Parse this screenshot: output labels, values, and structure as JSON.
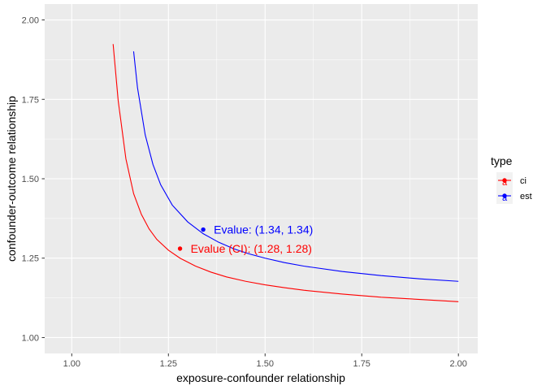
{
  "chart_data": {
    "type": "line",
    "xlabel": "exposure-confounder relationship",
    "ylabel": "confounder-outcome relationship",
    "xlim": [
      0.93,
      2.05
    ],
    "ylim": [
      0.95,
      2.05
    ],
    "x_ticks": [
      "1.00",
      "1.25",
      "1.50",
      "1.75",
      "2.00"
    ],
    "y_ticks": [
      "1.00",
      "1.25",
      "1.50",
      "1.75",
      "2.00"
    ],
    "grid": true,
    "legend": {
      "title": "type",
      "position": "right"
    },
    "series": [
      {
        "name": "ci",
        "color": "#ff0000",
        "x": [
          1.107,
          1.12,
          1.14,
          1.16,
          1.18,
          1.2,
          1.22,
          1.25,
          1.28,
          1.32,
          1.36,
          1.4,
          1.45,
          1.5,
          1.55,
          1.6,
          1.7,
          1.8,
          1.9,
          2.0
        ],
        "y": [
          1.924,
          1.747,
          1.563,
          1.453,
          1.388,
          1.342,
          1.309,
          1.275,
          1.25,
          1.225,
          1.206,
          1.191,
          1.177,
          1.166,
          1.157,
          1.149,
          1.137,
          1.127,
          1.12,
          1.113
        ],
        "point": {
          "x": 1.28,
          "y": 1.28
        },
        "annotation": "Evalue (CI): (1.28, 1.28)"
      },
      {
        "name": "est",
        "color": "#0000ff",
        "x": [
          1.16,
          1.17,
          1.19,
          1.21,
          1.23,
          1.26,
          1.3,
          1.34,
          1.38,
          1.42,
          1.46,
          1.5,
          1.55,
          1.6,
          1.7,
          1.8,
          1.9,
          2.0
        ],
        "y": [
          1.901,
          1.787,
          1.638,
          1.545,
          1.481,
          1.417,
          1.364,
          1.327,
          1.3,
          1.279,
          1.263,
          1.25,
          1.236,
          1.225,
          1.208,
          1.195,
          1.185,
          1.177
        ],
        "point": {
          "x": 1.34,
          "y": 1.34
        },
        "annotation": "Evalue: (1.34, 1.34)"
      }
    ]
  },
  "legend_keys": {
    "ci": "ci",
    "est": "est",
    "glyph": "a"
  }
}
